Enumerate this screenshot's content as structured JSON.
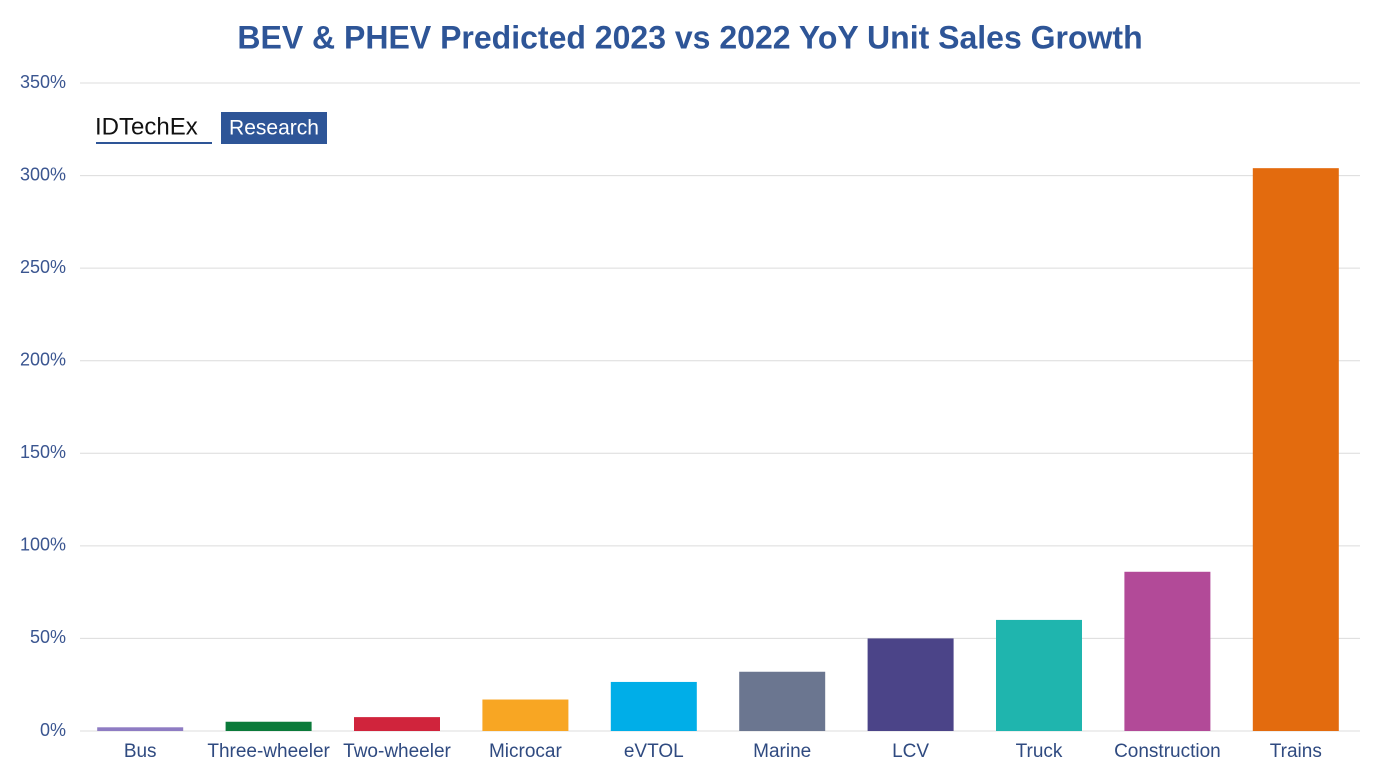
{
  "chart_data": {
    "type": "bar",
    "title": "BEV & PHEV Predicted 2023 vs 2022 YoY Unit Sales Growth",
    "brand": "IDTechEx",
    "brand_suffix": "Research",
    "categories": [
      "Bus",
      "Three-wheeler",
      "Two-wheeler",
      "Microcar",
      "eVTOL",
      "Marine",
      "LCV",
      "Truck",
      "Construction",
      "Trains"
    ],
    "values": [
      2,
      5,
      7.5,
      17,
      26.5,
      32,
      50,
      60,
      86,
      304
    ],
    "colors": [
      "#8e7cc3",
      "#0b7a3a",
      "#d0243c",
      "#f8a623",
      "#00aee8",
      "#6b7690",
      "#4b4488",
      "#1fb5ae",
      "#b24a98",
      "#e36b0e"
    ],
    "ylim": [
      0,
      350
    ],
    "yticks": [
      {
        "value": 0,
        "label": "0%"
      },
      {
        "value": 50,
        "label": "50%"
      },
      {
        "value": 100,
        "label": "100%"
      },
      {
        "value": 150,
        "label": "150%"
      },
      {
        "value": 200,
        "label": "200%"
      },
      {
        "value": 250,
        "label": "250%"
      },
      {
        "value": 300,
        "label": "300%"
      },
      {
        "value": 350,
        "label": "350%"
      }
    ],
    "grid": true
  }
}
